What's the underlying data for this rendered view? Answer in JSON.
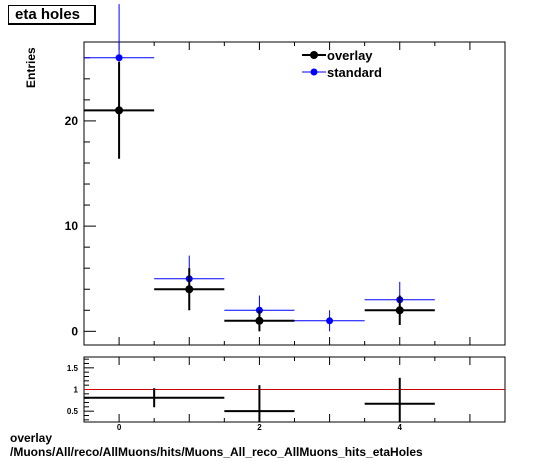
{
  "title": "eta holes",
  "caption": {
    "line1": "overlay",
    "line2": "/Muons/All/reco/AllMuons/hits/Muons_All_reco_AllMuons_hits_etaHoles"
  },
  "colors": {
    "overlay": "#000000",
    "standard": "#0000ff",
    "ratio_ref_line": "#cc0000"
  },
  "chart_data": [
    {
      "type": "scatter",
      "xlabel": "",
      "ylabel": "Entries",
      "xlim": [
        -0.5,
        5.5
      ],
      "ylim": [
        -1.3,
        27.5
      ],
      "yticks": [
        0,
        10,
        20
      ],
      "xticks": [
        0,
        2,
        4
      ],
      "legend": "top-right",
      "grid": false,
      "series": [
        {
          "name": "overlay",
          "points": [
            {
              "x": 0,
              "y": 21,
              "xerr": 0.5,
              "yerr": 4.6
            },
            {
              "x": 1,
              "y": 4,
              "xerr": 0.5,
              "yerr": 2.0
            },
            {
              "x": 2,
              "y": 1,
              "xerr": 0.5,
              "yerr": 1.0
            },
            {
              "x": 4,
              "y": 2,
              "xerr": 0.5,
              "yerr": 1.4
            }
          ]
        },
        {
          "name": "standard",
          "points": [
            {
              "x": 0,
              "y": 26,
              "xerr": 0.5,
              "yerr": 5.1
            },
            {
              "x": 1,
              "y": 5,
              "xerr": 0.5,
              "yerr": 2.2
            },
            {
              "x": 2,
              "y": 2,
              "xerr": 0.5,
              "yerr": 1.4
            },
            {
              "x": 3,
              "y": 1,
              "xerr": 0.5,
              "yerr": 1.0
            },
            {
              "x": 4,
              "y": 3,
              "xerr": 0.5,
              "yerr": 1.7
            }
          ]
        }
      ]
    },
    {
      "type": "scatter",
      "xlabel": "",
      "ylabel": "",
      "xlim": [
        -0.5,
        5.5
      ],
      "ylim": [
        0.25,
        1.75
      ],
      "yticks": [
        0.5,
        1,
        1.5
      ],
      "ytick_labels": [
        "0.5",
        "1",
        "1.5"
      ],
      "xticks": [
        0,
        2,
        4
      ],
      "reference_line": 1,
      "grid": false,
      "series": [
        {
          "points": [
            {
              "x": 0.5,
              "y": 0.81,
              "xerr": 1.0,
              "yerr": 0.22
            },
            {
              "x": 2,
              "y": 0.5,
              "xerr": 0.5,
              "yerr": 0.6
            },
            {
              "x": 4,
              "y": 0.67,
              "xerr": 0.5,
              "yerr": 0.6
            }
          ]
        }
      ]
    }
  ]
}
